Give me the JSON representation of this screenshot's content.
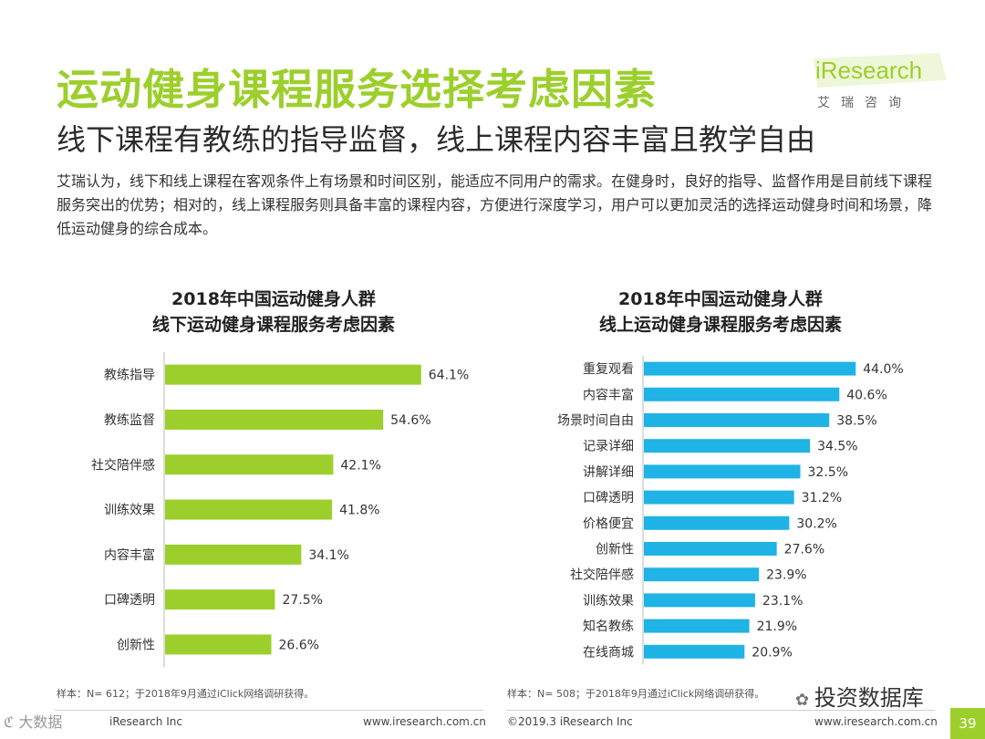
{
  "header": {
    "title": "运动健身课程服务选择考虑因素",
    "subtitle": "线下课程有教练的指导监督，线上课程内容丰富且教学自由",
    "intro": "艾瑞认为，线下和线上课程在客观条件上有场景和时间区别，能适应不同用户的需求。在健身时，良好的指导、监督作用是目前线下课程服务突出的优势；相对的，线上课程服务则具备丰富的课程内容，方便进行深度学习，用户可以更加灵活的选择运动健身时间和场景，降低运动健身的综合成本。",
    "logo": "iResearch",
    "logo_cn": "艾瑞咨询"
  },
  "colors": {
    "brand": "#9ccf2c",
    "offline_bar": "#9ccf2c",
    "online_bar": "#1fb3e6"
  },
  "chart_data": [
    {
      "type": "bar",
      "orientation": "horizontal",
      "title_line1": "2018年中国运动健身人群",
      "title_line2": "线下运动健身课程服务考虑因素",
      "categories": [
        "教练指导",
        "教练监督",
        "社交陪伴感",
        "训练效果",
        "内容丰富",
        "口碑透明",
        "创新性"
      ],
      "values": [
        64.1,
        54.6,
        42.1,
        41.8,
        34.1,
        27.5,
        26.6
      ],
      "value_labels": [
        "64.1%",
        "54.6%",
        "42.1%",
        "41.8%",
        "34.1%",
        "27.5%",
        "26.6%"
      ],
      "xlim": [
        0,
        100
      ],
      "note": "样本：N= 612；于2018年9月通过iClick网络调研获得。"
    },
    {
      "type": "bar",
      "orientation": "horizontal",
      "title_line1": "2018年中国运动健身人群",
      "title_line2": "线上运动健身课程服务考虑因素",
      "categories": [
        "重复观看",
        "内容丰富",
        "场景时间自由",
        "记录详细",
        "讲解详细",
        "口碑透明",
        "价格便宜",
        "创新性",
        "社交陪伴感",
        "训练效果",
        "知名教练",
        "在线商城"
      ],
      "values": [
        44.0,
        40.6,
        38.5,
        34.5,
        32.5,
        31.2,
        30.2,
        27.6,
        23.9,
        23.1,
        21.9,
        20.9
      ],
      "value_labels": [
        "44.0%",
        "40.6%",
        "38.5%",
        "34.5%",
        "32.5%",
        "31.2%",
        "30.2%",
        "27.6%",
        "23.9%",
        "23.1%",
        "21.9%",
        "20.9%"
      ],
      "xlim": [
        0,
        72
      ],
      "note": "样本：N= 508；于2018年9月通过iClick网络调研获得。"
    }
  ],
  "footer": {
    "left_text": "iResearch Inc",
    "left_url": "www.iresearch.com.cn",
    "right_copyright": "©2019.3  iResearch Inc",
    "right_url": "www.iresearch.com.cn",
    "page": "39",
    "wechat": "投资数据库",
    "watermark": "大数据"
  }
}
